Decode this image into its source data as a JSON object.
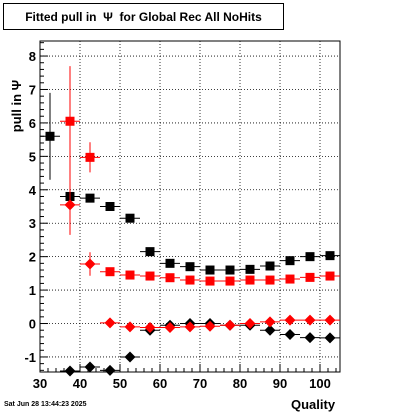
{
  "title": "Fitted pull in  Ψ  for Global Rec All NoHits",
  "timestamp": "Sat Jun 28 13:44:23 2025",
  "chart_data": {
    "type": "scatter",
    "title": "Fitted pull in  Ψ  for Global Rec All NoHits",
    "xlabel": "Quality",
    "ylabel": "pull in  Ψ",
    "xlim": [
      30,
      105
    ],
    "ylim": [
      -1.45,
      8.45
    ],
    "xticks": [
      30,
      40,
      50,
      60,
      70,
      80,
      90,
      100
    ],
    "yticks": [
      -1,
      0,
      1,
      2,
      3,
      4,
      5,
      6,
      7,
      8
    ],
    "grid": true,
    "series": [
      {
        "marker": "square",
        "color": "#000000",
        "x": [
          32.5,
          37.5,
          42.5,
          47.5,
          52.5,
          57.5,
          62.5,
          67.5,
          72.5,
          77.5,
          82.5,
          87.5,
          92.5,
          97.5,
          102.5
        ],
        "y": [
          5.6,
          3.8,
          3.75,
          3.5,
          3.15,
          2.15,
          1.8,
          1.7,
          1.6,
          1.6,
          1.62,
          1.72,
          1.88,
          2.0,
          2.03
        ],
        "yerr": [
          1.3,
          0.3,
          0.05,
          0.05,
          0.05,
          0.05,
          0.05,
          0.05,
          0.05,
          0.05,
          0.05,
          0.05,
          0.05,
          0.05,
          0.05
        ]
      },
      {
        "marker": "square",
        "color": "#ff0000",
        "x": [
          37.5,
          42.5,
          47.5,
          52.5,
          57.5,
          62.5,
          67.5,
          72.5,
          77.5,
          82.5,
          87.5,
          92.5,
          97.5,
          102.5
        ],
        "y": [
          6.05,
          4.97,
          1.55,
          1.45,
          1.42,
          1.37,
          1.3,
          1.27,
          1.27,
          1.3,
          1.3,
          1.33,
          1.38,
          1.42
        ],
        "yerr": [
          1.65,
          0.45,
          0.05,
          0.05,
          0.05,
          0.05,
          0.05,
          0.05,
          0.05,
          0.05,
          0.05,
          0.05,
          0.05,
          0.05
        ]
      },
      {
        "marker": "diamond",
        "color": "#000000",
        "x": [
          37.5,
          42.5,
          47.5,
          52.5,
          57.5,
          62.5,
          67.5,
          72.5,
          77.5,
          82.5,
          87.5,
          92.5,
          97.5,
          102.5
        ],
        "y": [
          -1.42,
          -1.3,
          -1.4,
          -1.0,
          -0.2,
          -0.05,
          0.0,
          0.0,
          -0.05,
          -0.05,
          -0.2,
          -0.33,
          -0.42,
          -0.43
        ],
        "yerr": [
          0.05,
          0.05,
          0.05,
          0.05,
          0.05,
          0.05,
          0.05,
          0.05,
          0.05,
          0.05,
          0.05,
          0.05,
          0.05,
          0.05
        ]
      },
      {
        "marker": "diamond",
        "color": "#ff0000",
        "x": [
          37.5,
          42.5,
          47.5,
          52.5,
          57.5,
          62.5,
          67.5,
          72.5,
          77.5,
          82.5,
          87.5,
          92.5,
          97.5,
          102.5
        ],
        "y": [
          3.55,
          1.78,
          0.02,
          -0.1,
          -0.12,
          -0.12,
          -0.1,
          -0.08,
          -0.05,
          0.0,
          0.05,
          0.1,
          0.1,
          0.1
        ],
        "yerr": [
          0.9,
          0.35,
          0.05,
          0.05,
          0.05,
          0.05,
          0.05,
          0.05,
          0.05,
          0.05,
          0.05,
          0.05,
          0.05,
          0.05
        ]
      }
    ]
  }
}
